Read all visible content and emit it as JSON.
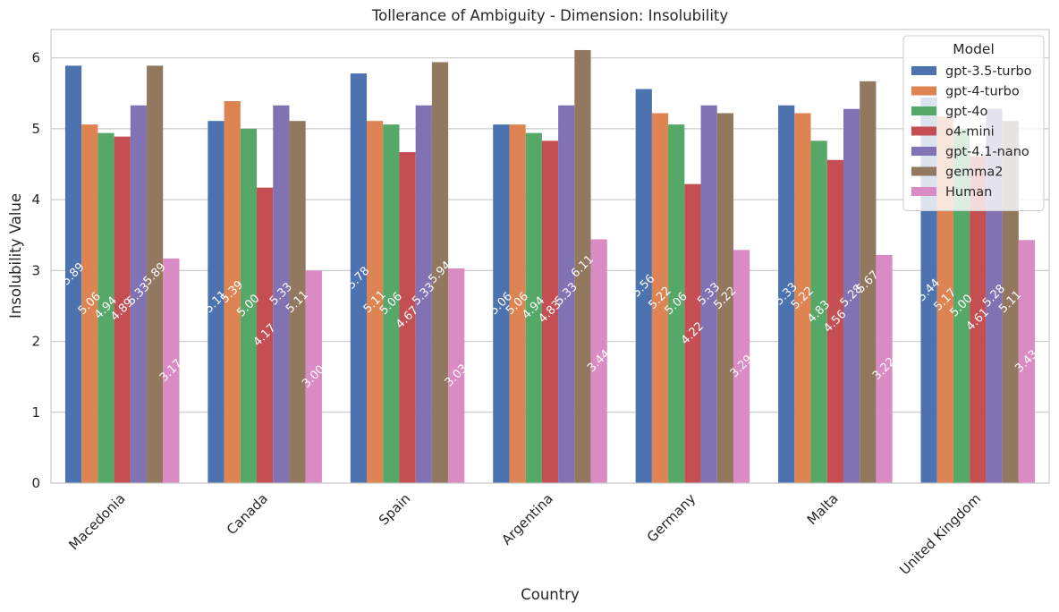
{
  "chart_data": {
    "type": "bar",
    "title": "Tollerance of Ambiguity - Dimension: Insolubility",
    "xlabel": "Country",
    "ylabel": "Insolubility Value",
    "ylim": [
      0,
      6.4
    ],
    "yticks": [
      0,
      1,
      2,
      3,
      4,
      5,
      6
    ],
    "grid": "horizontal",
    "legend": {
      "title": "Model",
      "placement": "top-right"
    },
    "categories": [
      "Macedonia",
      "Canada",
      "Spain",
      "Argentina",
      "Germany",
      "Malta",
      "United Kingdom"
    ],
    "series": [
      {
        "name": "gpt-3.5-turbo",
        "color": "#4c72b0",
        "values": [
          5.89,
          5.11,
          5.78,
          5.06,
          5.56,
          5.33,
          5.44
        ],
        "labels": [
          "5.89",
          "5.11",
          "5.78",
          "5.06",
          "5.56",
          "5.33",
          "5.44"
        ]
      },
      {
        "name": "gpt-4-turbo",
        "color": "#dd8452",
        "values": [
          5.06,
          5.39,
          5.11,
          5.06,
          5.22,
          5.22,
          5.17
        ],
        "labels": [
          "5.06",
          "5.39",
          "5.11",
          "5.06",
          "5.22",
          "5.22",
          "5.17"
        ]
      },
      {
        "name": "gpt-4o",
        "color": "#55a868",
        "values": [
          4.94,
          5.0,
          5.06,
          4.94,
          5.06,
          4.83,
          5.0
        ],
        "labels": [
          "4.94",
          "5.00",
          "5.06",
          "4.94",
          "5.06",
          "4.83",
          "5.00"
        ]
      },
      {
        "name": "o4-mini",
        "color": "#c44e52",
        "values": [
          4.89,
          4.17,
          4.67,
          4.83,
          4.22,
          4.56,
          4.61
        ],
        "labels": [
          "4.89",
          "4.17",
          "4.67",
          "4.83",
          "4.22",
          "4.56",
          "4.61"
        ]
      },
      {
        "name": "gpt-4.1-nano",
        "color": "#8172b3",
        "values": [
          5.33,
          5.33,
          5.33,
          5.33,
          5.33,
          5.28,
          5.28
        ],
        "labels": [
          "5.33",
          "5.33",
          "5.33",
          "5.33",
          "5.33",
          "5.28",
          "5.28"
        ]
      },
      {
        "name": "gemma2",
        "color": "#937860",
        "values": [
          5.89,
          5.11,
          5.94,
          6.11,
          5.22,
          5.67,
          5.11
        ],
        "labels": [
          "5.89",
          "5.11",
          "5.94",
          "6.11",
          "5.22",
          "5.67",
          "5.11"
        ]
      },
      {
        "name": "Human",
        "color": "#da8bc3",
        "values": [
          3.17,
          3.0,
          3.03,
          3.44,
          3.29,
          3.22,
          3.43
        ],
        "labels": [
          "3.17",
          "3.00",
          "3.03",
          "3.44",
          "3.29",
          "3.22",
          "3.43"
        ]
      }
    ]
  }
}
